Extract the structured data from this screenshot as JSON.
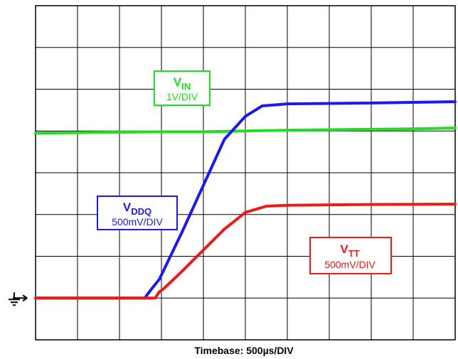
{
  "chart_data": {
    "type": "line",
    "grid": true,
    "grid_divisions": {
      "x": 10,
      "y": 8
    },
    "xlabel": "Timebase: 500µs/DIV",
    "xlim": [
      0,
      10
    ],
    "ylim": [
      0,
      8
    ],
    "x_units": "divisions",
    "y_units": "divisions",
    "ground_marker_level": 1,
    "series": [
      {
        "key": "vin",
        "color": "#22dd22",
        "label_main": "V",
        "label_sub": "IN",
        "scale": "1V/DIV",
        "points": [
          [
            0,
            4.95
          ],
          [
            1,
            4.96
          ],
          [
            2,
            4.97
          ],
          [
            3,
            4.98
          ],
          [
            4,
            4.98
          ],
          [
            5,
            5.0
          ],
          [
            6,
            5.02
          ],
          [
            7,
            5.03
          ],
          [
            8,
            5.04
          ],
          [
            9,
            5.05
          ],
          [
            10,
            5.07
          ]
        ]
      },
      {
        "key": "vddq",
        "color": "#1a1aee",
        "label_main": "V",
        "label_sub": "DDQ",
        "scale": "500mV/DIV",
        "points": [
          [
            0,
            1.0
          ],
          [
            2.6,
            1.0
          ],
          [
            2.75,
            1.2
          ],
          [
            2.95,
            1.45
          ],
          [
            3.5,
            2.6
          ],
          [
            4.0,
            3.7
          ],
          [
            4.5,
            4.8
          ],
          [
            5.0,
            5.35
          ],
          [
            5.4,
            5.6
          ],
          [
            6.0,
            5.65
          ],
          [
            8.0,
            5.67
          ],
          [
            10,
            5.7
          ]
        ]
      },
      {
        "key": "vtt",
        "color": "#ee1a1a",
        "label_main": "V",
        "label_sub": "TT",
        "scale": "500mV/DIV",
        "points": [
          [
            0,
            1.0
          ],
          [
            2.85,
            1.0
          ],
          [
            2.95,
            1.15
          ],
          [
            3.05,
            1.22
          ],
          [
            3.5,
            1.65
          ],
          [
            4.0,
            2.15
          ],
          [
            4.5,
            2.65
          ],
          [
            5.0,
            3.05
          ],
          [
            5.5,
            3.2
          ],
          [
            6.0,
            3.22
          ],
          [
            8.0,
            3.24
          ],
          [
            10,
            3.25
          ]
        ]
      }
    ]
  }
}
